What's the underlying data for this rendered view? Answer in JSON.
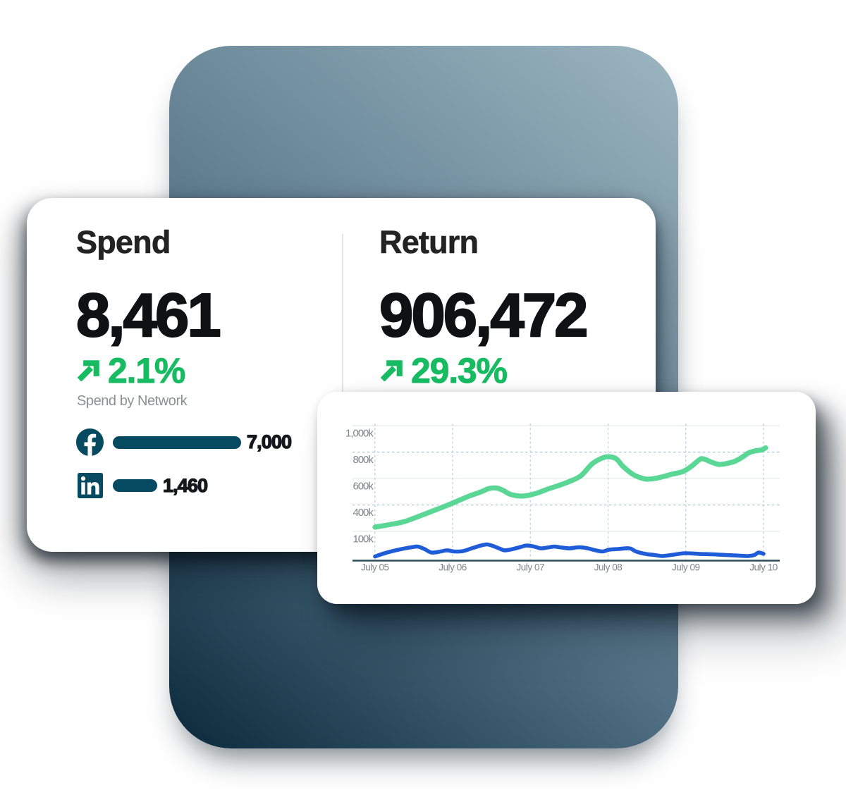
{
  "page": {
    "background": "#ffffff"
  },
  "panel": {
    "gradient_light": "#9cb6c1",
    "gradient_dark": "#0a2a3c"
  },
  "colors": {
    "accent_green": "#17bb62",
    "line_green": "#5bd795",
    "line_blue": "#1f5dd8",
    "brand_teal": "#064a61",
    "heading": "#232323",
    "number": "#101113",
    "muted_grey": "#8a9094",
    "axis_grey": "#75808a",
    "axis_line": "#2e4d5b"
  },
  "stats_card": {
    "spend": {
      "title": "Spend",
      "value": "8,461",
      "delta": "2.1%",
      "delta_direction": "up",
      "breakdown_label": "Spend by Network",
      "networks": [
        {
          "name": "Facebook",
          "value": "7,000"
        },
        {
          "name": "LinkedIn",
          "value": "1,460"
        }
      ]
    },
    "return": {
      "title": "Return",
      "value": "906,472",
      "delta": "29.3%",
      "delta_direction": "up"
    }
  },
  "chart_data": {
    "type": "line",
    "x_tick_labels": [
      "July 05",
      "July 06",
      "July 07",
      "July 08",
      "July 09",
      "July 10"
    ],
    "y_tick_labels": [
      "1,000k",
      "800k",
      "600k",
      "400k",
      "100k"
    ],
    "ylim_k": [
      0,
      1050
    ],
    "grid": {
      "horizontal": "alternating solid/dashed",
      "vertical": "dashed at each day"
    },
    "legend_position": "none",
    "series": [
      {
        "name": "Return",
        "color": "#5bd795",
        "points": [
          [
            0.002,
            248
          ],
          [
            0.211,
            269
          ],
          [
            0.383,
            290
          ],
          [
            0.673,
            352
          ],
          [
            0.955,
            415
          ],
          [
            1.19,
            473
          ],
          [
            1.363,
            509
          ],
          [
            1.463,
            533
          ],
          [
            1.562,
            538
          ],
          [
            1.644,
            522
          ],
          [
            1.735,
            493
          ],
          [
            1.834,
            480
          ],
          [
            1.934,
            480
          ],
          [
            2.079,
            499
          ],
          [
            2.224,
            530
          ],
          [
            2.361,
            556
          ],
          [
            2.506,
            587
          ],
          [
            2.651,
            629
          ],
          [
            2.787,
            713
          ],
          [
            2.905,
            755
          ],
          [
            3.0,
            770
          ],
          [
            3.104,
            755
          ],
          [
            3.186,
            702
          ],
          [
            3.304,
            645
          ],
          [
            3.385,
            621
          ],
          [
            3.503,
            603
          ],
          [
            3.649,
            614
          ],
          [
            3.821,
            640
          ],
          [
            3.966,
            661
          ],
          [
            4.079,
            702
          ],
          [
            4.166,
            744
          ],
          [
            4.22,
            755
          ],
          [
            4.338,
            728
          ],
          [
            4.424,
            713
          ],
          [
            4.51,
            718
          ],
          [
            4.628,
            736
          ],
          [
            4.737,
            770
          ],
          [
            4.8,
            796
          ],
          [
            4.882,
            812
          ],
          [
            4.973,
            820
          ],
          [
            5.027,
            836
          ]
        ]
      },
      {
        "name": "Spend",
        "color": "#1f5dd8",
        "points": [
          [
            0.002,
            31
          ],
          [
            0.156,
            60
          ],
          [
            0.329,
            84
          ],
          [
            0.501,
            102
          ],
          [
            0.556,
            104
          ],
          [
            0.637,
            86
          ],
          [
            0.728,
            60
          ],
          [
            0.846,
            68
          ],
          [
            0.927,
            76
          ],
          [
            1.018,
            68
          ],
          [
            1.127,
            70
          ],
          [
            1.245,
            91
          ],
          [
            1.363,
            112
          ],
          [
            1.444,
            120
          ],
          [
            1.526,
            107
          ],
          [
            1.617,
            86
          ],
          [
            1.671,
            76
          ],
          [
            1.762,
            84
          ],
          [
            1.88,
            102
          ],
          [
            1.952,
            112
          ],
          [
            2.052,
            104
          ],
          [
            2.134,
            91
          ],
          [
            2.224,
            97
          ],
          [
            2.306,
            104
          ],
          [
            2.397,
            97
          ],
          [
            2.506,
            91
          ],
          [
            2.624,
            99
          ],
          [
            2.741,
            91
          ],
          [
            2.841,
            76
          ],
          [
            2.932,
            68
          ],
          [
            3.014,
            81
          ],
          [
            3.132,
            86
          ],
          [
            3.277,
            91
          ],
          [
            3.358,
            68
          ],
          [
            3.476,
            50
          ],
          [
            3.594,
            42
          ],
          [
            3.703,
            34
          ],
          [
            3.875,
            47
          ],
          [
            3.993,
            55
          ],
          [
            4.166,
            50
          ],
          [
            4.338,
            47
          ],
          [
            4.51,
            42
          ],
          [
            4.683,
            37
          ],
          [
            4.8,
            34
          ],
          [
            4.882,
            42
          ],
          [
            4.937,
            60
          ],
          [
            5.0,
            50
          ]
        ]
      }
    ]
  }
}
